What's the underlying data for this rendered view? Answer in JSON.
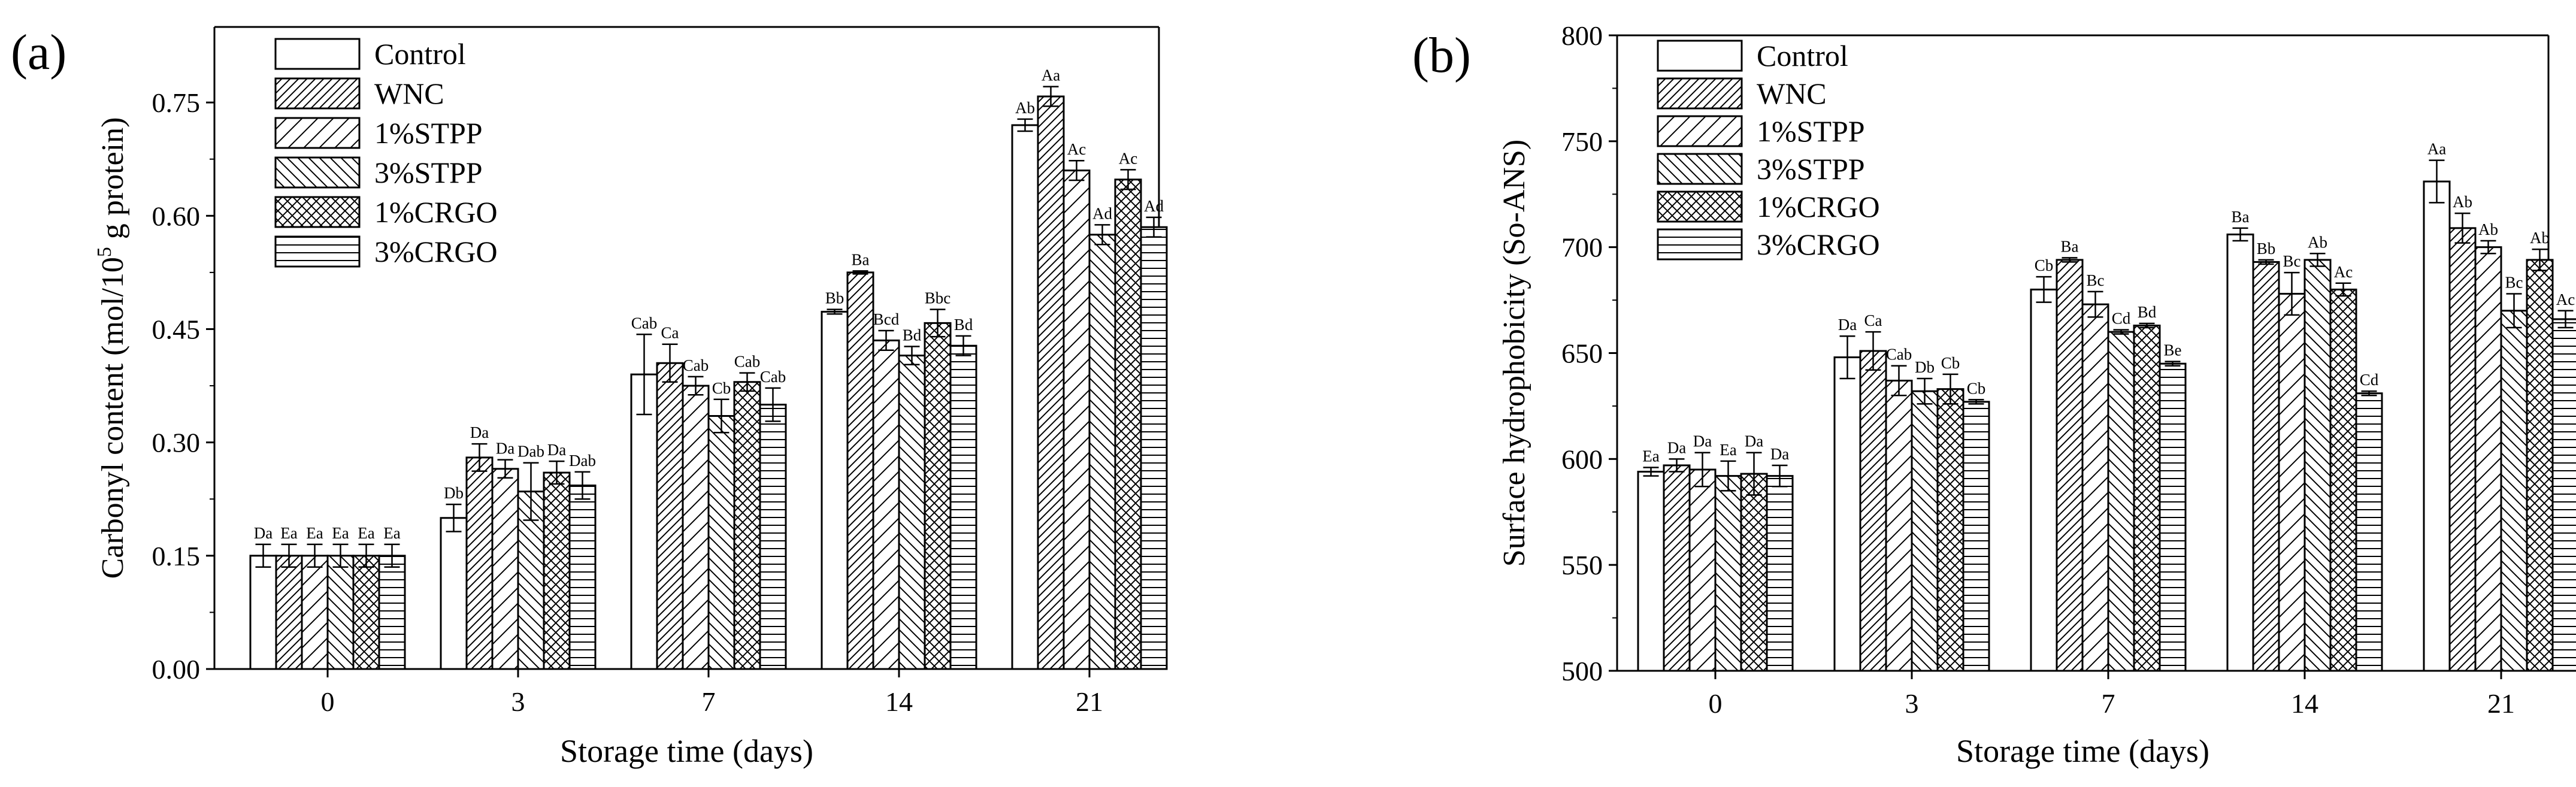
{
  "chart_data": [
    {
      "panel_label": "(a)",
      "type": "bar",
      "xlabel": "Storage time (days)",
      "ylabel_main": "Carbonyl content (mol/10",
      "ylabel_sup": "5",
      "ylabel_tail": " g protein)",
      "ylim": [
        0,
        0.85
      ],
      "yticks": [
        0,
        0.15,
        0.3,
        0.45,
        0.6,
        0.75
      ],
      "ytick_labels": [
        "0.00",
        "0.15",
        "0.30",
        "0.45",
        "0.60",
        "0.75"
      ],
      "categories": [
        "0",
        "3",
        "7",
        "14",
        "21"
      ],
      "legend_position": "top-left",
      "series": [
        {
          "name": "Control",
          "pattern": "none",
          "values": [
            0.15,
            0.2,
            0.39,
            0.473,
            0.72
          ],
          "errors": [
            0.015,
            0.018,
            0.053,
            0.003,
            0.008
          ],
          "labels": [
            "Da",
            "Db",
            "Cab",
            "Bb",
            "Ab"
          ]
        },
        {
          "name": "WNC",
          "pattern": "diag-up-dense",
          "values": [
            0.15,
            0.28,
            0.405,
            0.525,
            0.758
          ],
          "errors": [
            0.015,
            0.018,
            0.025,
            0.002,
            0.013
          ],
          "labels": [
            "Ea",
            "Da",
            "Ca",
            "Ba",
            "Aa"
          ]
        },
        {
          "name": "1%STPP",
          "pattern": "diag-up-sparse",
          "values": [
            0.15,
            0.265,
            0.375,
            0.435,
            0.66
          ],
          "errors": [
            0.015,
            0.012,
            0.012,
            0.013,
            0.013
          ],
          "labels": [
            "Ea",
            "Da",
            "Cab",
            "Bcd",
            "Ac"
          ]
        },
        {
          "name": "3%STPP",
          "pattern": "diag-down",
          "values": [
            0.15,
            0.235,
            0.335,
            0.415,
            0.575
          ],
          "errors": [
            0.015,
            0.038,
            0.022,
            0.012,
            0.013
          ],
          "labels": [
            "Ea",
            "Dab",
            "Cb",
            "Bd",
            "Ad"
          ]
        },
        {
          "name": "1%CRGO",
          "pattern": "crosshatch",
          "values": [
            0.15,
            0.26,
            0.38,
            0.458,
            0.648
          ],
          "errors": [
            0.015,
            0.015,
            0.012,
            0.018,
            0.013
          ],
          "labels": [
            "Ea",
            "Da",
            "Cab",
            "Bbc",
            "Ac"
          ]
        },
        {
          "name": "3%CRGO",
          "pattern": "horizontal",
          "values": [
            0.15,
            0.243,
            0.35,
            0.428,
            0.585
          ],
          "errors": [
            0.015,
            0.018,
            0.022,
            0.013,
            0.013
          ],
          "labels": [
            "Ea",
            "Dab",
            "Cab",
            "Bd",
            "Ad"
          ]
        }
      ]
    },
    {
      "panel_label": "(b)",
      "type": "bar",
      "xlabel": "Storage time (days)",
      "ylabel_main": "Surface hydrophobicity (So-ANS)",
      "ylim": [
        500,
        800
      ],
      "yticks": [
        500,
        550,
        600,
        650,
        700,
        750,
        800
      ],
      "ytick_labels": [
        "500",
        "550",
        "600",
        "650",
        "700",
        "750",
        "800"
      ],
      "categories": [
        "0",
        "3",
        "7",
        "14",
        "21"
      ],
      "legend_position": "top-left",
      "series": [
        {
          "name": "Control",
          "pattern": "none",
          "values": [
            594,
            648,
            680,
            706,
            731
          ],
          "errors": [
            2,
            10,
            6,
            3,
            10
          ],
          "labels": [
            "Ea",
            "Da",
            "Cb",
            "Ba",
            "Aa"
          ]
        },
        {
          "name": "WNC",
          "pattern": "diag-up-dense",
          "values": [
            597,
            651,
            694,
            693,
            709
          ],
          "errors": [
            3,
            9,
            1,
            1,
            7
          ],
          "labels": [
            "Da",
            "Ca",
            "Ba",
            "Bb",
            "Ab"
          ]
        },
        {
          "name": "1%STPP",
          "pattern": "diag-up-sparse",
          "values": [
            595,
            637,
            673,
            678,
            700
          ],
          "errors": [
            8,
            7,
            6,
            10,
            3
          ],
          "labels": [
            "Da",
            "Cab",
            "Bc",
            "Bc",
            "Ab"
          ]
        },
        {
          "name": "3%STPP",
          "pattern": "diag-down",
          "values": [
            592,
            632,
            660,
            694,
            670
          ],
          "errors": [
            7,
            6,
            1,
            3,
            8
          ],
          "labels": [
            "Ea",
            "Db",
            "Cd",
            "Ab",
            "Bc"
          ]
        },
        {
          "name": "1%CRGO",
          "pattern": "crosshatch",
          "values": [
            593,
            633,
            663,
            680,
            694
          ],
          "errors": [
            10,
            7,
            1,
            3,
            5
          ],
          "labels": [
            "Da",
            "Cb",
            "Bd",
            "Ac",
            "Ab"
          ]
        },
        {
          "name": "3%CRGO",
          "pattern": "horizontal",
          "values": [
            592,
            627,
            645,
            631,
            666
          ],
          "errors": [
            5,
            1,
            1,
            1,
            4
          ],
          "labels": [
            "Da",
            "Cb",
            "Be",
            "Cd",
            "Ac"
          ]
        }
      ]
    }
  ]
}
